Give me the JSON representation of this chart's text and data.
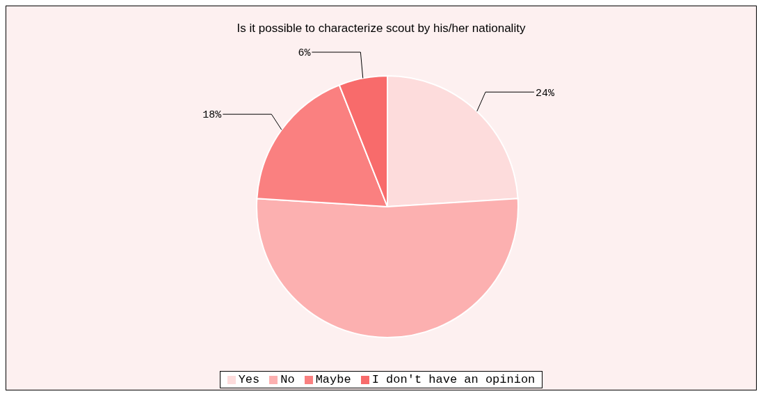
{
  "chart_data": {
    "type": "pie",
    "title": "Is it possible to characterize scout by his/her nationality",
    "categories": [
      "Yes",
      "No",
      "Maybe",
      "I don't have an opinion"
    ],
    "values": [
      24,
      52,
      18,
      6
    ],
    "colors": [
      "#fddcdc",
      "#fcb0b0",
      "#fa8080",
      "#f86b6b"
    ],
    "value_labels": [
      "24%",
      null,
      "18%",
      "6%"
    ],
    "legend": "bottom"
  }
}
